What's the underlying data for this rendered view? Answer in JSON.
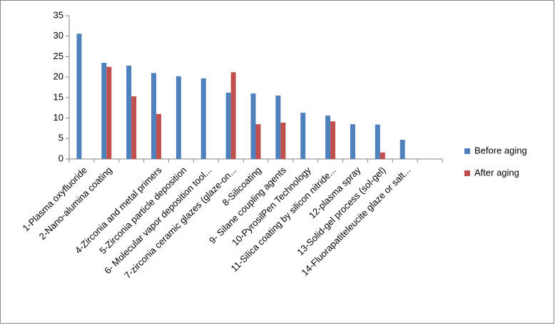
{
  "chart_data": {
    "type": "bar",
    "categories": [
      "1-Plasma oxyfluoride",
      "2-Nano-alumina coating",
      null,
      "4-Zirconia and metal primers",
      "5-Zirconia particle deposition",
      "6- Molecular vapor deposition tool...",
      "7-zirconia ceramic glazes (glaze-on...",
      "8-Silicoating",
      "9- Silane coupling agents",
      "10-PyrosilPen Technology",
      "11-Silica coating by silicon nitride...",
      "12-plasma spray",
      "13-Solid-gel process (sol-gel)",
      "14-Fluorapatiteleucite glaze or salt...",
      null
    ],
    "series": [
      {
        "name": "Before aging",
        "color": "#4f81bd",
        "values": [
          30.6,
          23.5,
          22.8,
          21,
          20.2,
          19.7,
          16.2,
          16,
          15.5,
          11.3,
          10.6,
          8.5,
          8.4,
          4.7,
          null
        ]
      },
      {
        "name": "After aging",
        "color": "#c0504d",
        "values": [
          null,
          22.5,
          15.3,
          11,
          null,
          null,
          21.2,
          8.5,
          8.9,
          null,
          9.2,
          null,
          1.6,
          null,
          null
        ]
      }
    ],
    "ylim": [
      0,
      35
    ],
    "yticks": [
      0,
      5,
      10,
      15,
      20,
      25,
      30,
      35
    ],
    "grid": false,
    "legend": "right"
  }
}
